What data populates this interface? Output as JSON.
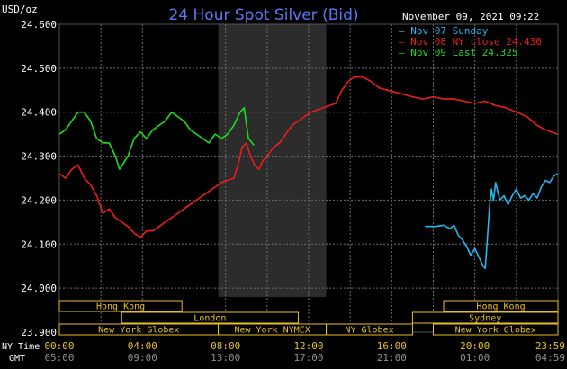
{
  "chart_data": {
    "type": "line",
    "title": "24 Hour Spot Silver (Bid)",
    "ylabel": "USD/oz",
    "timestamp": "November 09, 2021 09:22",
    "ylim": [
      23.9,
      24.6
    ],
    "y_ticks": [
      "24.600",
      "24.500",
      "24.400",
      "24.300",
      "24.200",
      "24.100",
      "24.000",
      "23.900"
    ],
    "x_label_top": "NY Time",
    "x_label_bottom": "GMT",
    "x_ticks_ny": [
      "00:00",
      "04:00",
      "08:00",
      "12:00",
      "16:00",
      "20:00",
      "23:59"
    ],
    "x_ticks_gmt": [
      "05:00",
      "09:00",
      "13:00",
      "17:00",
      "21:00",
      "01:00",
      "04:59"
    ],
    "grid": true,
    "legend_position": "top-right",
    "series": [
      {
        "name": "Nov 07 Sunday",
        "color": "#22b8f0",
        "points": [
          [
            17.6,
            24.14
          ],
          [
            18.1,
            24.14
          ],
          [
            18.5,
            24.143
          ],
          [
            18.8,
            24.135
          ],
          [
            19.0,
            24.143
          ],
          [
            19.2,
            24.12
          ],
          [
            19.4,
            24.11
          ],
          [
            19.6,
            24.095
          ],
          [
            19.8,
            24.075
          ],
          [
            20.0,
            24.09
          ],
          [
            20.2,
            24.07
          ],
          [
            20.4,
            24.05
          ],
          [
            20.5,
            24.045
          ],
          [
            20.6,
            24.11
          ],
          [
            20.7,
            24.18
          ],
          [
            20.8,
            24.225
          ],
          [
            20.9,
            24.2
          ],
          [
            21.0,
            24.24
          ],
          [
            21.2,
            24.2
          ],
          [
            21.4,
            24.21
          ],
          [
            21.6,
            24.19
          ],
          [
            21.8,
            24.21
          ],
          [
            22.0,
            24.225
          ],
          [
            22.2,
            24.205
          ],
          [
            22.4,
            24.21
          ],
          [
            22.6,
            24.2
          ],
          [
            22.8,
            24.215
          ],
          [
            23.0,
            24.205
          ],
          [
            23.2,
            24.23
          ],
          [
            23.4,
            24.245
          ],
          [
            23.6,
            24.24
          ],
          [
            23.8,
            24.255
          ],
          [
            23.98,
            24.26
          ]
        ]
      },
      {
        "name": "Nov 08 NY close 24.430",
        "color": "#ee1c1c",
        "points": [
          [
            0,
            24.26
          ],
          [
            0.3,
            24.25
          ],
          [
            0.6,
            24.27
          ],
          [
            0.9,
            24.28
          ],
          [
            1.2,
            24.25
          ],
          [
            1.5,
            24.235
          ],
          [
            1.8,
            24.21
          ],
          [
            2.1,
            24.17
          ],
          [
            2.4,
            24.18
          ],
          [
            2.7,
            24.16
          ],
          [
            3.0,
            24.15
          ],
          [
            3.3,
            24.14
          ],
          [
            3.6,
            24.125
          ],
          [
            3.9,
            24.115
          ],
          [
            4.2,
            24.13
          ],
          [
            4.5,
            24.13
          ],
          [
            4.8,
            24.14
          ],
          [
            5.1,
            24.15
          ],
          [
            5.4,
            24.16
          ],
          [
            5.7,
            24.17
          ],
          [
            6.0,
            24.18
          ],
          [
            6.3,
            24.19
          ],
          [
            6.6,
            24.2
          ],
          [
            6.9,
            24.21
          ],
          [
            7.2,
            24.22
          ],
          [
            7.5,
            24.23
          ],
          [
            7.8,
            24.24
          ],
          [
            8.1,
            24.245
          ],
          [
            8.4,
            24.25
          ],
          [
            8.6,
            24.28
          ],
          [
            8.8,
            24.32
          ],
          [
            9.0,
            24.33
          ],
          [
            9.2,
            24.3
          ],
          [
            9.4,
            24.28
          ],
          [
            9.6,
            24.27
          ],
          [
            9.8,
            24.29
          ],
          [
            10.0,
            24.3
          ],
          [
            10.3,
            24.32
          ],
          [
            10.6,
            24.33
          ],
          [
            10.9,
            24.35
          ],
          [
            11.2,
            24.37
          ],
          [
            11.5,
            24.38
          ],
          [
            11.8,
            24.39
          ],
          [
            12.1,
            24.4
          ],
          [
            12.4,
            24.405
          ],
          [
            12.7,
            24.41
          ],
          [
            13.0,
            24.415
          ],
          [
            13.3,
            24.42
          ],
          [
            13.6,
            24.45
          ],
          [
            13.9,
            24.47
          ],
          [
            14.2,
            24.48
          ],
          [
            14.6,
            24.48
          ],
          [
            15.0,
            24.47
          ],
          [
            15.4,
            24.455
          ],
          [
            15.8,
            24.45
          ],
          [
            16.2,
            24.445
          ],
          [
            16.6,
            24.44
          ],
          [
            17.0,
            24.435
          ],
          [
            17.5,
            24.43
          ],
          [
            18.0,
            24.435
          ],
          [
            18.5,
            24.43
          ],
          [
            19.0,
            24.43
          ],
          [
            19.5,
            24.425
          ],
          [
            20.0,
            24.42
          ],
          [
            20.5,
            24.425
          ],
          [
            21.0,
            24.415
          ],
          [
            21.5,
            24.41
          ],
          [
            22.0,
            24.4
          ],
          [
            22.5,
            24.39
          ],
          [
            23.0,
            24.37
          ],
          [
            23.4,
            24.36
          ],
          [
            23.7,
            24.355
          ],
          [
            23.98,
            24.35
          ]
        ]
      },
      {
        "name": "Nov 09 Last 24.325",
        "color": "#18e018",
        "points": [
          [
            0,
            24.35
          ],
          [
            0.3,
            24.36
          ],
          [
            0.6,
            24.38
          ],
          [
            0.9,
            24.4
          ],
          [
            1.2,
            24.4
          ],
          [
            1.5,
            24.38
          ],
          [
            1.8,
            24.34
          ],
          [
            2.1,
            24.33
          ],
          [
            2.4,
            24.33
          ],
          [
            2.7,
            24.3
          ],
          [
            2.9,
            24.27
          ],
          [
            3.1,
            24.285
          ],
          [
            3.3,
            24.3
          ],
          [
            3.6,
            24.34
          ],
          [
            3.9,
            24.355
          ],
          [
            4.2,
            24.34
          ],
          [
            4.5,
            24.36
          ],
          [
            4.8,
            24.37
          ],
          [
            5.1,
            24.38
          ],
          [
            5.4,
            24.4
          ],
          [
            5.7,
            24.39
          ],
          [
            6.0,
            24.38
          ],
          [
            6.3,
            24.36
          ],
          [
            6.6,
            24.35
          ],
          [
            6.9,
            24.34
          ],
          [
            7.2,
            24.33
          ],
          [
            7.5,
            24.35
          ],
          [
            7.8,
            24.34
          ],
          [
            8.1,
            24.35
          ],
          [
            8.4,
            24.37
          ],
          [
            8.7,
            24.4
          ],
          [
            8.9,
            24.41
          ],
          [
            9.1,
            24.34
          ],
          [
            9.37,
            24.325
          ]
        ]
      }
    ],
    "shaded_regions": [
      [
        7.65,
        12.85
      ]
    ],
    "market_sessions": [
      {
        "name": "Hong Kong",
        "start": 0,
        "end": 5.9,
        "row": 0
      },
      {
        "name": "Hong Kong",
        "start": 18.5,
        "end": 24,
        "row": 0
      },
      {
        "name": "London",
        "start": 3.0,
        "end": 11.5,
        "row": 1
      },
      {
        "name": "Sydney",
        "start": 17.0,
        "end": 24,
        "row": 1
      },
      {
        "name": "New York Globex",
        "start": 0,
        "end": 7.65,
        "row": 2
      },
      {
        "name": "New York NYMEX",
        "start": 7.65,
        "end": 12.85,
        "row": 2
      },
      {
        "name": "NY Globex",
        "start": 12.85,
        "end": 17.0,
        "row": 2
      },
      {
        "name": "New York Globex",
        "start": 18.0,
        "end": 24,
        "row": 2
      }
    ]
  },
  "colors": {
    "background": "#000000",
    "grid": "#6e6e6e",
    "axis_text": "#ffffff",
    "title": "#5b79f5",
    "shade": "#2c2c2c",
    "session_border": "#e8c020",
    "session_text": "#e8c020",
    "time_label": "#e8c020",
    "gmt_text": "#909090",
    "dash": "#4a4a4a"
  }
}
